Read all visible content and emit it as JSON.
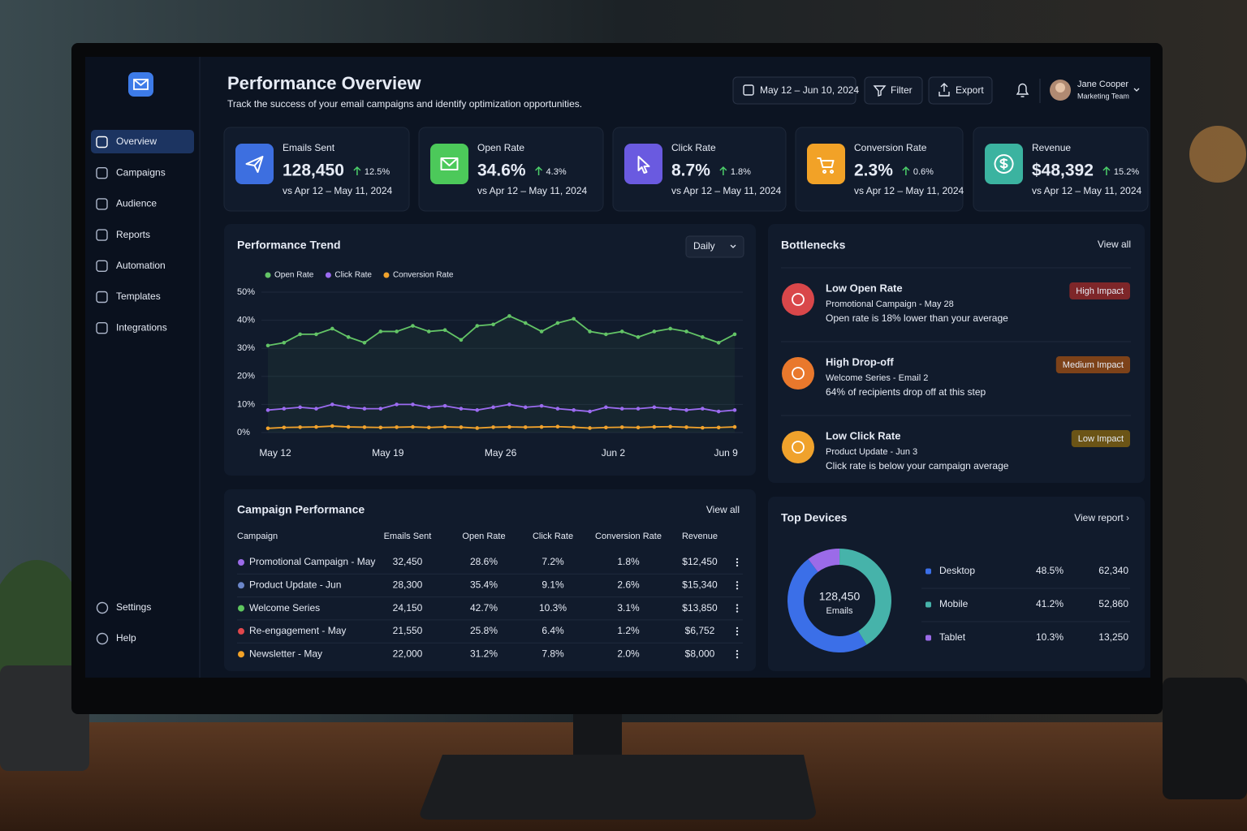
{
  "sidebar": {
    "nav": [
      "Overview",
      "Campaigns",
      "Audience",
      "Reports",
      "Automation",
      "Templates",
      "Integrations"
    ],
    "bottom": [
      "Settings",
      "Help"
    ]
  },
  "header": {
    "title": "Performance Overview",
    "subtitle": "Track the success of your email campaigns and identify optimization opportunities.",
    "date_range": "May 12 – Jun 10, 2024",
    "filter": "Filter",
    "export": "Export",
    "user_name": "Jane Cooper",
    "user_role": "Marketing Team"
  },
  "kpis": [
    {
      "label": "Emails Sent",
      "value": "128,450",
      "change": "12.5%",
      "period": "vs Apr 12 – May 11, 2024",
      "color": "#3d6fe0"
    },
    {
      "label": "Open Rate",
      "value": "34.6%",
      "change": "4.3%",
      "period": "vs Apr 12 – May 11, 2024",
      "color": "#4cc95a"
    },
    {
      "label": "Click Rate",
      "value": "8.7%",
      "change": "1.8%",
      "period": "vs Apr 12 – May 11, 2024",
      "color": "#6a5ae0"
    },
    {
      "label": "Conversion Rate",
      "value": "2.3%",
      "change": "0.6%",
      "period": "vs Apr 12 – May 11, 2024",
      "color": "#f2a227"
    },
    {
      "label": "Revenue",
      "value": "$48,392",
      "change": "15.2%",
      "period": "vs Apr 12 – May 11, 2024",
      "color": "#3bb3a0"
    }
  ],
  "chart_data": [
    {
      "type": "line",
      "title": "Performance Trend",
      "interval": "Daily",
      "categories": [
        "May 12",
        null,
        null,
        null,
        null,
        null,
        null,
        "May 19",
        null,
        null,
        null,
        null,
        null,
        null,
        "May 26",
        null,
        null,
        null,
        null,
        null,
        null,
        "Jun 2",
        null,
        null,
        null,
        null,
        null,
        null,
        "Jun 9",
        null
      ],
      "series": [
        {
          "name": "Open Rate",
          "color": "#63c466",
          "values": [
            31,
            32,
            35,
            35,
            37,
            34,
            32,
            36,
            36,
            38,
            36,
            36.5,
            33,
            38,
            38.5,
            41.5,
            39,
            36,
            39,
            40.5,
            36,
            35,
            36,
            34,
            36,
            37,
            36,
            34,
            32,
            35
          ]
        },
        {
          "name": "Click Rate",
          "color": "#9b6bf0",
          "values": [
            8,
            8.5,
            9,
            8.5,
            10,
            9,
            8.5,
            8.5,
            10,
            10,
            9,
            9.5,
            8.5,
            8,
            9,
            10,
            9,
            9.5,
            8.5,
            8,
            7.5,
            9,
            8.5,
            8.5,
            9,
            8.5,
            8,
            8.5,
            7.5,
            8
          ]
        },
        {
          "name": "Conversion Rate",
          "color": "#f0a22c",
          "values": [
            1.5,
            1.8,
            1.9,
            2,
            2.3,
            2,
            1.9,
            1.8,
            1.9,
            2,
            1.8,
            2,
            1.9,
            1.6,
            1.9,
            2,
            1.9,
            2,
            2.1,
            1.9,
            1.6,
            1.8,
            1.9,
            1.8,
            2,
            2.1,
            1.9,
            1.7,
            1.8,
            2
          ]
        }
      ],
      "ylim": [
        0,
        50
      ],
      "yticks": [
        {
          "value": 0,
          "label": "0%"
        },
        {
          "value": 10,
          "label": "10%"
        },
        {
          "value": 20,
          "label": "20%"
        },
        {
          "value": 30,
          "label": "30%"
        },
        {
          "value": 40,
          "label": "40%"
        },
        {
          "value": 50,
          "label": "50%"
        }
      ],
      "grid": true
    },
    {
      "type": "pie",
      "title": "Top Devices",
      "link": "View report ›",
      "center_value": "128,450",
      "center_label": "Emails",
      "categories": [
        "Desktop",
        "Mobile",
        "Tablet"
      ],
      "values": [
        48.5,
        41.2,
        10.3
      ],
      "value_labels": [
        "48.5%",
        "41.2%",
        "10.3%"
      ],
      "emails": [
        "62,340",
        "52,860",
        "13,250"
      ],
      "colors": [
        "#3b6fe8",
        "#46b3aa",
        "#9b6be8"
      ]
    }
  ],
  "bottlenecks": {
    "title": "Bottlenecks",
    "link": "View all",
    "items": [
      {
        "title": "Low Open Rate",
        "campaign": "Promotional Campaign - May 28",
        "detail": "Open rate is 18% lower than your average",
        "impact": "High Impact",
        "color": "#d9474a",
        "badge_color": "#7e2629"
      },
      {
        "title": "High Drop-off",
        "campaign": "Welcome Series - Email 2",
        "detail": "64% of recipients drop off at this step",
        "impact": "Medium Impact",
        "color": "#e9782c",
        "badge_color": "#7d4219"
      },
      {
        "title": "Low Click Rate",
        "campaign": "Product Update - Jun 3",
        "detail": "Click rate is below your campaign average",
        "impact": "Low Impact",
        "color": "#f0a22c",
        "badge_color": "#6b5416"
      }
    ]
  },
  "campaigns": {
    "title": "Campaign Performance",
    "link": "View all",
    "columns": [
      "Campaign",
      "Emails Sent",
      "Open Rate",
      "Click Rate",
      "Conversion Rate",
      "Revenue"
    ],
    "rows": [
      {
        "color": "#9b6be8",
        "cells": [
          "Promotional Campaign - May",
          "32,450",
          "28.6%",
          "7.2%",
          "1.8%",
          "$12,450"
        ]
      },
      {
        "color": "#6b86c9",
        "cells": [
          "Product Update - Jun",
          "28,300",
          "35.4%",
          "9.1%",
          "2.6%",
          "$15,340"
        ]
      },
      {
        "color": "#5ec65e",
        "cells": [
          "Welcome Series",
          "24,150",
          "42.7%",
          "10.3%",
          "3.1%",
          "$13,850"
        ]
      },
      {
        "color": "#e0474c",
        "cells": [
          "Re-engagement - May",
          "21,550",
          "25.8%",
          "6.4%",
          "1.2%",
          "$6,752"
        ]
      },
      {
        "color": "#f2a227",
        "cells": [
          "Newsletter - May",
          "22,000",
          "31.2%",
          "7.8%",
          "2.0%",
          "$8,000"
        ]
      }
    ]
  }
}
